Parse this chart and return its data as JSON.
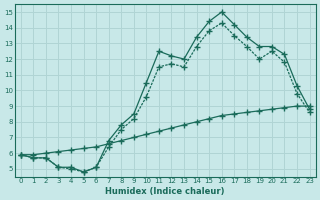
{
  "xlabel": "Humidex (Indice chaleur)",
  "ylabel": "",
  "xlim": [
    -0.5,
    23.5
  ],
  "ylim": [
    4.5,
    15.5
  ],
  "xticks": [
    0,
    1,
    2,
    3,
    4,
    5,
    6,
    7,
    8,
    9,
    10,
    11,
    12,
    13,
    14,
    15,
    16,
    17,
    18,
    19,
    20,
    21,
    22,
    23
  ],
  "yticks": [
    5,
    6,
    7,
    8,
    9,
    10,
    11,
    12,
    13,
    14,
    15
  ],
  "bg_color": "#c8e8e8",
  "line_color": "#1a6b5a",
  "grid_color": "#b0d4d4",
  "line1_x": [
    0,
    1,
    2,
    3,
    4,
    5,
    6,
    7,
    8,
    9,
    10,
    11,
    12,
    13,
    14,
    15,
    16,
    17,
    18,
    19,
    20,
    21,
    22,
    23
  ],
  "line1_y": [
    5.9,
    5.7,
    5.7,
    5.1,
    5.1,
    4.8,
    5.1,
    6.8,
    7.8,
    8.5,
    10.5,
    12.5,
    12.2,
    12.0,
    13.4,
    14.4,
    15.0,
    14.2,
    13.4,
    12.8,
    12.8,
    12.3,
    10.3,
    8.8
  ],
  "line2_x": [
    0,
    1,
    2,
    3,
    4,
    5,
    6,
    7,
    8,
    9,
    10,
    11,
    12,
    13,
    14,
    15,
    16,
    17,
    18,
    19,
    20,
    21,
    22,
    23
  ],
  "line2_y": [
    5.9,
    5.7,
    5.7,
    5.1,
    5.0,
    4.8,
    5.1,
    6.4,
    7.5,
    8.2,
    9.6,
    11.5,
    11.7,
    11.5,
    12.8,
    13.8,
    14.3,
    13.5,
    12.8,
    12.0,
    12.5,
    11.8,
    9.8,
    8.6
  ],
  "line3_x": [
    0,
    1,
    2,
    3,
    4,
    5,
    6,
    7,
    8,
    9,
    10,
    11,
    12,
    13,
    14,
    15,
    16,
    17,
    18,
    19,
    20,
    21,
    22,
    23
  ],
  "line3_y": [
    5.9,
    5.9,
    6.0,
    6.1,
    6.2,
    6.3,
    6.4,
    6.6,
    6.8,
    7.0,
    7.2,
    7.4,
    7.6,
    7.8,
    8.0,
    8.2,
    8.4,
    8.5,
    8.6,
    8.7,
    8.8,
    8.9,
    9.0,
    9.0
  ]
}
